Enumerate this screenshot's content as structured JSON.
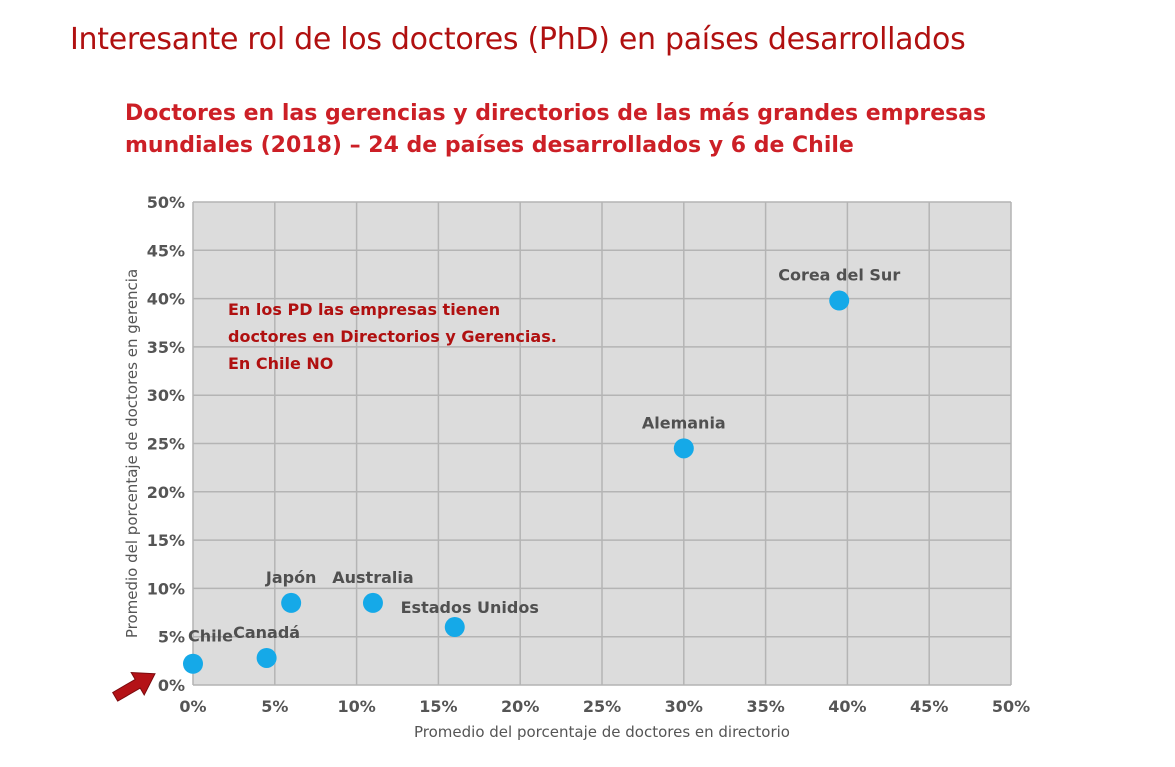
{
  "slide_title": "Interesante rol de los doctores (PhD) en países desarrollados",
  "chart_title": {
    "line1": "Doctores en las gerencias y directorios de las más grandes  empresas",
    "line2": "mundiales (2018) – 24 de países desarrollados y 6 de Chile"
  },
  "annotation": {
    "line1": "En los PD las empresas tienen",
    "line2": "doctores en Directorios y Gerencias.",
    "line3": "En Chile NO"
  },
  "colors": {
    "title": "#b01010",
    "subtitle": "#cc1f26",
    "plot_background": "#dcdcdc",
    "grid": "#ffffff",
    "point": "#15a9e8",
    "arrow": "#b41217"
  },
  "chart_data": {
    "type": "scatter",
    "xlabel": "Promedio del porcentaje de doctores en directorio",
    "ylabel": "Promedio del porcentaje de doctores en gerencia",
    "xlim": [
      0,
      50
    ],
    "ylim": [
      0,
      50
    ],
    "xticks": [
      0,
      5,
      10,
      15,
      20,
      25,
      30,
      35,
      40,
      45,
      50
    ],
    "yticks": [
      0,
      5,
      10,
      15,
      20,
      25,
      30,
      35,
      40,
      45,
      50
    ],
    "xtick_labels": [
      "0%",
      "5%",
      "10%",
      "15%",
      "20%",
      "25%",
      "30%",
      "35%",
      "40%",
      "45%",
      "50%"
    ],
    "ytick_labels": [
      "0%",
      "5%",
      "10%",
      "15%",
      "20%",
      "25%",
      "30%",
      "35%",
      "40%",
      "45%",
      "50%"
    ],
    "grid": true,
    "points": [
      {
        "label": "Chile",
        "x": 0.0,
        "y": 2.2,
        "label_pos": "left-above"
      },
      {
        "label": "Canadá",
        "x": 4.5,
        "y": 2.8,
        "label_pos": "above"
      },
      {
        "label": "Japón",
        "x": 6.0,
        "y": 8.5,
        "label_pos": "above"
      },
      {
        "label": "Australia",
        "x": 11.0,
        "y": 8.5,
        "label_pos": "above"
      },
      {
        "label": "Estados Unidos",
        "x": 16.0,
        "y": 6.0,
        "label_pos": "above-right"
      },
      {
        "label": "Alemania",
        "x": 30.0,
        "y": 24.5,
        "label_pos": "above"
      },
      {
        "label": "Corea del Sur",
        "x": 39.5,
        "y": 39.8,
        "label_pos": "above"
      }
    ],
    "highlight_arrow_target": "Chile"
  }
}
